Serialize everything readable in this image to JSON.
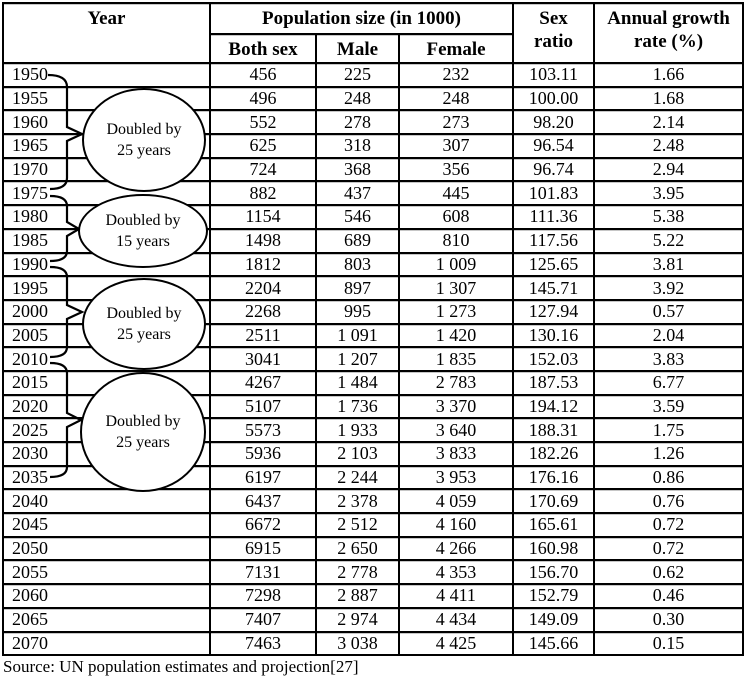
{
  "header": {
    "year": "Year",
    "population_size": "Population size (in 1000)",
    "both_sex": "Both sex",
    "male": "Male",
    "female": "Female",
    "sex_ratio": "Sex ratio",
    "annual_growth_rate": "Annual growth rate (%)"
  },
  "table": {
    "rows": [
      {
        "year": "1950",
        "both_sex": "456",
        "male": "225",
        "female": "232",
        "sex_ratio": "103.11",
        "growth_rate": "1.66"
      },
      {
        "year": "1955",
        "both_sex": "496",
        "male": "248",
        "female": "248",
        "sex_ratio": "100.00",
        "growth_rate": "1.68"
      },
      {
        "year": "1960",
        "both_sex": "552",
        "male": "278",
        "female": "273",
        "sex_ratio": "98.20",
        "growth_rate": "2.14"
      },
      {
        "year": "1965",
        "both_sex": "625",
        "male": "318",
        "female": "307",
        "sex_ratio": "96.54",
        "growth_rate": "2.48"
      },
      {
        "year": "1970",
        "both_sex": "724",
        "male": "368",
        "female": "356",
        "sex_ratio": "96.74",
        "growth_rate": "2.94"
      },
      {
        "year": "1975",
        "both_sex": "882",
        "male": "437",
        "female": "445",
        "sex_ratio": "101.83",
        "growth_rate": "3.95"
      },
      {
        "year": "1980",
        "both_sex": "1154",
        "male": "546",
        "female": "608",
        "sex_ratio": "111.36",
        "growth_rate": "5.38"
      },
      {
        "year": "1985",
        "both_sex": "1498",
        "male": "689",
        "female": "810",
        "sex_ratio": "117.56",
        "growth_rate": "5.22"
      },
      {
        "year": "1990",
        "both_sex": "1812",
        "male": "803",
        "female": "1 009",
        "sex_ratio": "125.65",
        "growth_rate": "3.81"
      },
      {
        "year": "1995",
        "both_sex": "2204",
        "male": "897",
        "female": "1 307",
        "sex_ratio": "145.71",
        "growth_rate": "3.92"
      },
      {
        "year": "2000",
        "both_sex": "2268",
        "male": "995",
        "female": "1 273",
        "sex_ratio": "127.94",
        "growth_rate": "0.57"
      },
      {
        "year": "2005",
        "both_sex": "2511",
        "male": "1 091",
        "female": "1 420",
        "sex_ratio": "130.16",
        "growth_rate": "2.04"
      },
      {
        "year": "2010",
        "both_sex": "3041",
        "male": "1 207",
        "female": "1 835",
        "sex_ratio": "152.03",
        "growth_rate": "3.83"
      },
      {
        "year": "2015",
        "both_sex": "4267",
        "male": "1 484",
        "female": "2 783",
        "sex_ratio": "187.53",
        "growth_rate": "6.77"
      },
      {
        "year": "2020",
        "both_sex": "5107",
        "male": "1 736",
        "female": "3 370",
        "sex_ratio": "194.12",
        "growth_rate": "3.59"
      },
      {
        "year": "2025",
        "both_sex": "5573",
        "male": "1 933",
        "female": "3 640",
        "sex_ratio": "188.31",
        "growth_rate": "1.75"
      },
      {
        "year": "2030",
        "both_sex": "5936",
        "male": "2 103",
        "female": "3 833",
        "sex_ratio": "182.26",
        "growth_rate": "1.26"
      },
      {
        "year": "2035",
        "both_sex": "6197",
        "male": "2 244",
        "female": "3 953",
        "sex_ratio": "176.16",
        "growth_rate": "0.86"
      },
      {
        "year": "2040",
        "both_sex": "6437",
        "male": "2 378",
        "female": "4 059",
        "sex_ratio": "170.69",
        "growth_rate": "0.76"
      },
      {
        "year": "2045",
        "both_sex": "6672",
        "male": "2 512",
        "female": "4 160",
        "sex_ratio": "165.61",
        "growth_rate": "0.72"
      },
      {
        "year": "2050",
        "both_sex": "6915",
        "male": "2 650",
        "female": "4 266",
        "sex_ratio": "160.98",
        "growth_rate": "0.72"
      },
      {
        "year": "2055",
        "both_sex": "7131",
        "male": "2 778",
        "female": "4 353",
        "sex_ratio": "156.70",
        "growth_rate": "0.62"
      },
      {
        "year": "2060",
        "both_sex": "7298",
        "male": "2 887",
        "female": "4 411",
        "sex_ratio": "152.79",
        "growth_rate": "0.46"
      },
      {
        "year": "2065",
        "both_sex": "7407",
        "male": "2 974",
        "female": "4 434",
        "sex_ratio": "149.09",
        "growth_rate": "0.30"
      },
      {
        "year": "2070",
        "both_sex": "7463",
        "male": "3 038",
        "female": "4 425",
        "sex_ratio": "145.66",
        "growth_rate": "0.15"
      }
    ]
  },
  "annotations": [
    {
      "line1": "Doubled by",
      "line2": "25 years"
    },
    {
      "line1": "Doubled by",
      "line2": "15 years"
    },
    {
      "line1": "Doubled by",
      "line2": "25 years"
    },
    {
      "line1": "Doubled by",
      "line2": "25 years"
    }
  ],
  "source": "Source: UN population estimates and projection[27]",
  "colors": {
    "text": "#000000",
    "border": "#000000",
    "background": "#ffffff"
  }
}
